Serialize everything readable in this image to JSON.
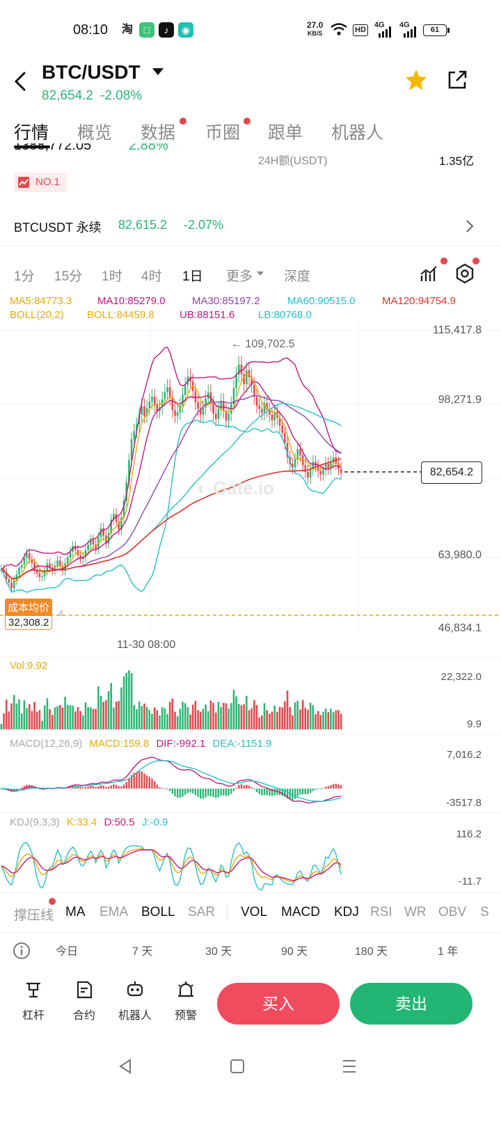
{
  "status_bar": {
    "time": "08:10",
    "net_speed_top": "27.0",
    "net_speed_unit": "KB/S",
    "hd_label": "HD",
    "sim1": "4G",
    "sim2": "4G",
    "battery": "61"
  },
  "header": {
    "pair": "BTC/USDT",
    "price": "82,654.2",
    "change": "-2.08%",
    "back_icon": "chevron-left-icon",
    "star_icon": "star-icon",
    "share_icon": "share-icon",
    "colors": {
      "up": "#2cb673",
      "down": "#e5484d",
      "star": "#f5b800"
    }
  },
  "tabs": [
    {
      "label": "行情",
      "active": true
    },
    {
      "label": "概览"
    },
    {
      "label": "数据",
      "dot": true
    },
    {
      "label": "币圈",
      "dot": true
    },
    {
      "label": "跟单"
    },
    {
      "label": "机器人"
    }
  ],
  "info": {
    "partial_price": "1388,772.05",
    "partial_change": "2.88%",
    "turnover_label": "24H额(USDT)",
    "turnover_value": "1.35亿",
    "rank_badge": "NO.1",
    "perp_name": "BTCUSDT 永续",
    "perp_price": "82,615.2",
    "perp_change": "-2.07%"
  },
  "intervals": {
    "items": [
      "1分",
      "15分",
      "1时",
      "4时",
      "1日",
      "更多",
      "深度"
    ],
    "active": "1日"
  },
  "chart_data": {
    "type": "candlestick",
    "timeframe": "1D",
    "legend_ma": [
      {
        "name": "MA5",
        "value": "84773.3",
        "color": "#e9a90a"
      },
      {
        "name": "MA10",
        "value": "85279.0",
        "color": "#c2187b"
      },
      {
        "name": "MA30",
        "value": "85197.2",
        "color": "#8e44ad"
      },
      {
        "name": "MA60",
        "value": "90515.0",
        "color": "#27bfc8"
      },
      {
        "name": "MA120",
        "value": "94754.9",
        "color": "#d9342b"
      }
    ],
    "legend_boll": [
      {
        "name": "BOLL(20,2)",
        "value": "",
        "color": "#e9a90a"
      },
      {
        "name": "BOLL",
        "value": "84459.8",
        "color": "#e9a90a"
      },
      {
        "name": "UB",
        "value": "88151.6",
        "color": "#c2187b"
      },
      {
        "name": "LB",
        "value": "80768.0",
        "color": "#27bfc8"
      }
    ],
    "y_ticks": [
      "115,417.8",
      "98,271.9",
      "63,980.0",
      "46,834.1"
    ],
    "y_range": [
      46834.1,
      115417.8
    ],
    "max_marker": "109,702.5",
    "current_price": "82,654.2",
    "cost_label": "成本均价",
    "cost_value": "32,308.2",
    "cost_partial": "4",
    "x_label": "11-30 08:00",
    "watermark": "Gate.io",
    "close_series": [
      60500,
      59800,
      58200,
      57400,
      56100,
      57900,
      59200,
      60800,
      61500,
      63100,
      64200,
      62800,
      61900,
      60400,
      59600,
      58700,
      58900,
      60100,
      61800,
      60800,
      60200,
      61300,
      62500,
      61200,
      60100,
      61900,
      63200,
      64500,
      65800,
      64900,
      63700,
      62800,
      63400,
      64900,
      66100,
      67300,
      66200,
      65100,
      67800,
      69900,
      68200,
      66400,
      68800,
      71900,
      73200,
      71400,
      69600,
      72400,
      76200,
      80500,
      85600,
      90400,
      92300,
      93800,
      96100,
      98000,
      95800,
      97600,
      99100,
      100200,
      98400,
      96900,
      97800,
      99600,
      101300,
      102400,
      99900,
      97100,
      95800,
      96600,
      98200,
      100600,
      102900,
      104800,
      103700,
      101500,
      98900,
      97400,
      96100,
      97700,
      99800,
      101200,
      98600,
      96300,
      95100,
      97400,
      99200,
      96900,
      94700,
      96300,
      98500,
      102200,
      105300,
      107600,
      105400,
      103100,
      106300,
      104700,
      102900,
      100200,
      98100,
      97400,
      96500,
      98700,
      97200,
      96100,
      94800,
      96700,
      95400,
      93600,
      91900,
      89600,
      86300,
      84700,
      83900,
      85900,
      88100,
      86700,
      84400,
      82900,
      81600,
      83500,
      85200,
      84300,
      83100,
      82300,
      83400,
      84800,
      83700,
      85100,
      86200,
      84900,
      83600,
      82654
    ],
    "vol_label": "Vol",
    "vol_value": "9.92",
    "vol_y_ticks": [
      "22,322.0",
      "9.9"
    ],
    "macd_params": "MACD(12,26,9)",
    "macd_value": "159.8",
    "dif_value": "-992.1",
    "dea_value": "-1151.9",
    "macd_y_ticks": [
      "7,016.2",
      "-3517.8"
    ],
    "kdj_params": "KDJ(9,3,3)",
    "k_value": "33.4",
    "d_value": "50.5",
    "j_value": "-0.9",
    "kdj_y_ticks": [
      "116.2",
      "-11.7"
    ]
  },
  "indicator_tabs": {
    "items": [
      "撑压线",
      "MA",
      "EMA",
      "BOLL",
      "SAR",
      "VOL",
      "MACD",
      "KDJ",
      "RSI",
      "WR",
      "OBV",
      "S"
    ],
    "selected": [
      "MA",
      "BOLL",
      "VOL",
      "MACD",
      "KDJ"
    ]
  },
  "performance": {
    "periods": [
      "今日",
      "7 天",
      "30 天",
      "90 天",
      "180 天",
      "1 年"
    ],
    "info_icon": "info-circle-icon"
  },
  "bottom_bar": {
    "items": [
      {
        "label": "杠杆",
        "icon": "leverage-icon"
      },
      {
        "label": "合约",
        "icon": "contract-icon"
      },
      {
        "label": "机器人",
        "icon": "robot-icon"
      },
      {
        "label": "预警",
        "icon": "alert-icon"
      }
    ],
    "buy_label": "买入",
    "sell_label": "卖出"
  },
  "nav_bar": {
    "back_icon": "nav-back-icon",
    "home_icon": "nav-home-icon",
    "menu_icon": "nav-menu-icon"
  }
}
